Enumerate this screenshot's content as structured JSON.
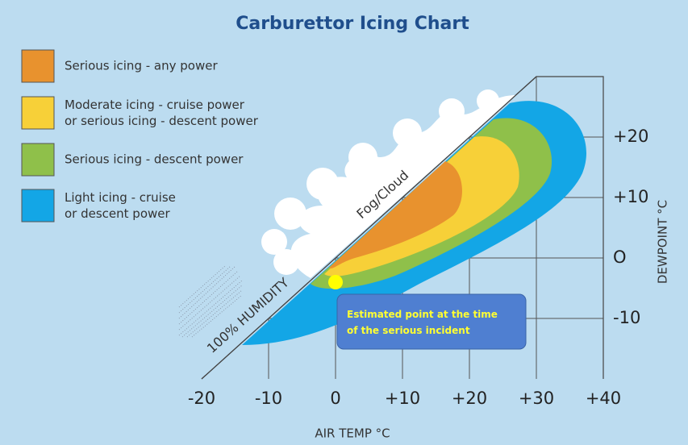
{
  "chart_data": {
    "type": "icing-chart",
    "title": "Carburettor Icing Chart",
    "series": [
      {
        "name": "Serious icing - any power",
        "color": "#e8922e"
      },
      {
        "name": "Moderate icing - cruise power\nor serious icing - descent power",
        "color": "#f7d038"
      },
      {
        "name": "Serious icing - descent power",
        "color": "#8fc04a"
      },
      {
        "name": "Light icing - cruise\nor descent power",
        "color": "#13a6e6"
      }
    ],
    "xlim": [
      -20,
      40
    ],
    "ylim": [
      -20,
      30
    ],
    "xticks": [
      -20,
      -10,
      0,
      {
        "value": 10,
        "label": "+10"
      },
      {
        "value": 20,
        "label": "+20"
      },
      {
        "value": 30,
        "label": "+30"
      },
      {
        "value": 40,
        "label": "+40"
      }
    ],
    "yticks": [
      -10,
      {
        "value": 0,
        "label": "O"
      },
      {
        "value": 10,
        "label": "+10"
      },
      {
        "value": 20,
        "label": "+20"
      }
    ],
    "xlabel": "AIR TEMP °C",
    "ylabel": "DEWPOINT °C",
    "diagonal_label": "100% HUMIDITY",
    "cloud_label": "Fog/Cloud",
    "point": {
      "x": 0,
      "y": -4,
      "color": "#ffff00"
    },
    "annotation": "Estimated point at the time\nof the serious incident",
    "grid": true
  }
}
